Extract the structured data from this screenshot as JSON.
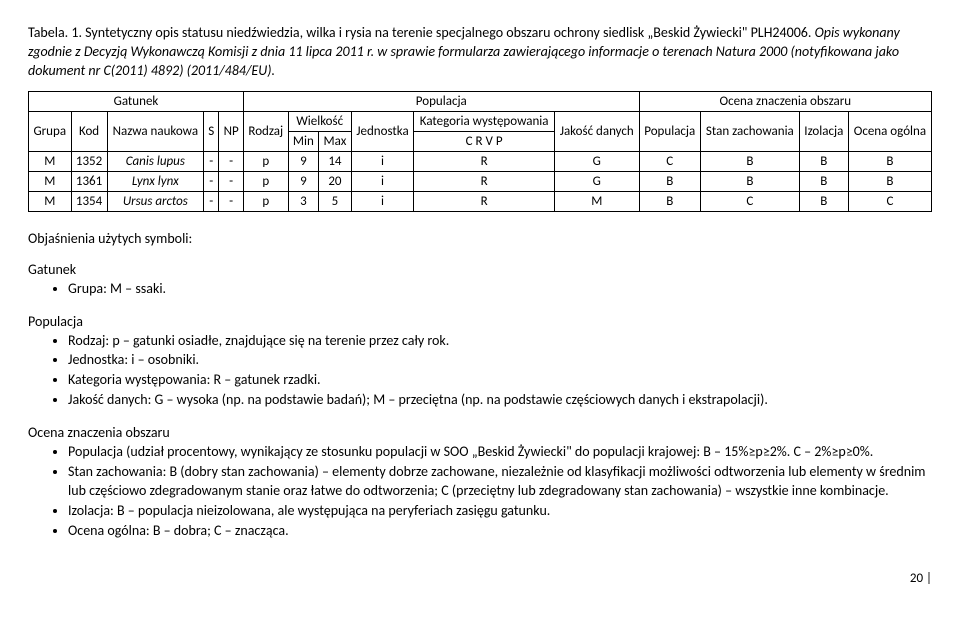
{
  "caption_prefix": "Tabela. 1. Syntetyczny opis statusu niedźwiedzia, wilka i rysia na terenie specjalnego obszaru ochrony siedlisk „Beskid Żywiecki\" PLH24006. ",
  "caption_italic": "Opis wykonany zgodnie z Decyzją Wykonawczą Komisji z dnia 11 lipca 2011 r. w sprawie formularza zawierającego informacje o terenach Natura 2000 (notyfikowana jako dokument nr C(2011) 4892) (2011/484/EU).",
  "headers": {
    "gatunek": "Gatunek",
    "populacja": "Populacja",
    "ocena": "Ocena znaczenia obszaru",
    "grupa": "Grupa",
    "kod": "Kod",
    "nazwa": "Nazwa naukowa",
    "s": "S",
    "np": "NP",
    "rodzaj": "Rodzaj",
    "wielkosc": "Wielkość",
    "min": "Min",
    "max": "Max",
    "jednostka": "Jednostka",
    "kategoria": "Kategoria występowania",
    "crvp": "C R V P",
    "jakosc": "Jakość danych",
    "populacja2": "Populacja",
    "stan": "Stan zachowania",
    "izolacja": "Izolacja",
    "ocena_ogolna": "Ocena ogólna"
  },
  "rows": [
    {
      "grupa": "M",
      "kod": "1352",
      "nazwa": "Canis lupus",
      "s": "-",
      "np": "-",
      "rodzaj": "p",
      "min": "9",
      "max": "14",
      "jedn": "i",
      "kat": "R",
      "jak": "G",
      "pop": "C",
      "stan": "B",
      "izo": "B",
      "og": "B"
    },
    {
      "grupa": "M",
      "kod": "1361",
      "nazwa": "Lynx lynx",
      "s": "-",
      "np": "-",
      "rodzaj": "p",
      "min": "9",
      "max": "20",
      "jedn": "i",
      "kat": "R",
      "jak": "G",
      "pop": "B",
      "stan": "B",
      "izo": "B",
      "og": "B"
    },
    {
      "grupa": "M",
      "kod": "1354",
      "nazwa": "Ursus arctos",
      "s": "-",
      "np": "-",
      "rodzaj": "p",
      "min": "3",
      "max": "5",
      "jedn": "i",
      "kat": "R",
      "jak": "M",
      "pop": "B",
      "stan": "C",
      "izo": "B",
      "og": "C"
    }
  ],
  "legend_title": "Objaśnienia użytych symboli:",
  "gatunek_title": "Gatunek",
  "gatunek_items": [
    "Grupa: M – ssaki."
  ],
  "populacja_title": "Populacja",
  "populacja_items": [
    "Rodzaj: p – gatunki osiadłe, znajdujące się na terenie przez cały rok.",
    "Jednostka: i – osobniki.",
    "Kategoria występowania: R – gatunek rzadki.",
    "Jakość danych: G – wysoka (np. na podstawie badań); M – przeciętna (np. na podstawie częściowych danych i ekstrapolacji)."
  ],
  "ocena_title": "Ocena znaczenia obszaru",
  "ocena_items": [
    "Populacja (udział procentowy, wynikający ze stosunku populacji w SOO „Beskid Żywiecki\" do populacji krajowej: B – 15%≥p≥2%. C – 2%≥p≥0%.",
    "Stan zachowania: B (dobry stan zachowania) – elementy dobrze zachowane, niezależnie od klasyfikacji możliwości odtworzenia lub elementy w średnim lub częściowo zdegradowanym stanie oraz łatwe do odtworzenia; C (przeciętny lub zdegradowany stan zachowania) – wszystkie inne kombinacje.",
    "Izolacja: B – populacja nieizolowana, ale występująca na peryferiach zasięgu gatunku.",
    "Ocena ogólna: B – dobra; C – znacząca."
  ],
  "page_number": "20 |"
}
